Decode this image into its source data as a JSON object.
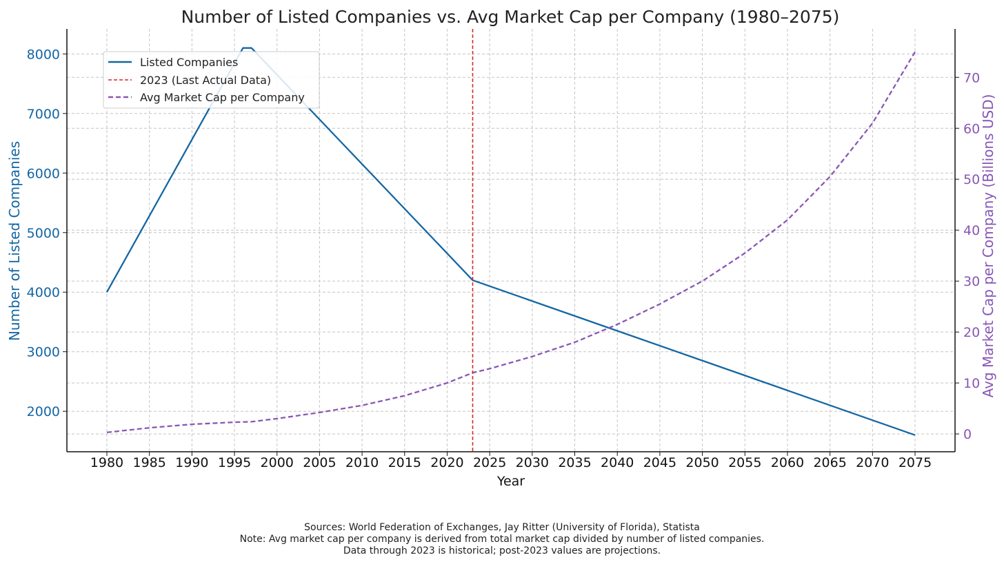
{
  "chart_data": {
    "type": "line",
    "title": "Number of Listed Companies vs. Avg Market Cap per Company (1980–2075)",
    "xlabel": "Year",
    "ylabel_left": "Number of Listed Companies",
    "ylabel_right": "Avg Market Cap per Company (Billions USD)",
    "x_ticks": [
      1980,
      1985,
      1990,
      1995,
      2000,
      2005,
      2010,
      2015,
      2020,
      2025,
      2030,
      2035,
      2040,
      2045,
      2050,
      2055,
      2060,
      2065,
      2070,
      2075
    ],
    "xlim": [
      1975.3,
      2079.7
    ],
    "ylim_left": [
      1320,
      8420
    ],
    "y_ticks_left": [
      2000,
      3000,
      4000,
      5000,
      6000,
      7000,
      8000
    ],
    "ylim_right": [
      -3.5,
      79.5
    ],
    "y_ticks_right": [
      0,
      10,
      20,
      30,
      40,
      50,
      60,
      70
    ],
    "grid": true,
    "legend_position": "upper-left",
    "vline": {
      "x": 2023,
      "label": "2023 (Last Actual Data)",
      "color": "#d62728",
      "style": "dashed"
    },
    "series": [
      {
        "name": "Listed Companies",
        "axis": "left",
        "color": "#1466a3",
        "style": "solid",
        "x": [
          1980,
          1996,
          1997,
          2023,
          2075
        ],
        "y": [
          4000,
          8100,
          8100,
          4200,
          1600
        ]
      },
      {
        "name": "Avg Market Cap per Company",
        "axis": "right",
        "color": "#8857b4",
        "style": "dashed",
        "x": [
          1980,
          1985,
          1990,
          1995,
          1997,
          2000,
          2005,
          2010,
          2015,
          2020,
          2023,
          2025,
          2030,
          2035,
          2040,
          2045,
          2050,
          2055,
          2060,
          2065,
          2070,
          2075
        ],
        "y": [
          0.3,
          1.2,
          1.9,
          2.3,
          2.4,
          3.0,
          4.2,
          5.6,
          7.5,
          10.0,
          12.0,
          12.8,
          15.2,
          18.0,
          21.5,
          25.5,
          30.0,
          35.5,
          42.0,
          50.5,
          61.0,
          75.0
        ]
      }
    ],
    "legend": [
      "Listed Companies",
      "2023 (Last Actual Data)",
      "Avg Market Cap per Company"
    ]
  },
  "footer": {
    "line1": "Sources: World Federation of Exchanges, Jay Ritter (University of Florida), Statista",
    "line2": "Note: Avg market cap per company is derived from total market cap divided by number of listed companies.",
    "line3": "Data through 2023 is historical; post-2023 values are projections."
  }
}
